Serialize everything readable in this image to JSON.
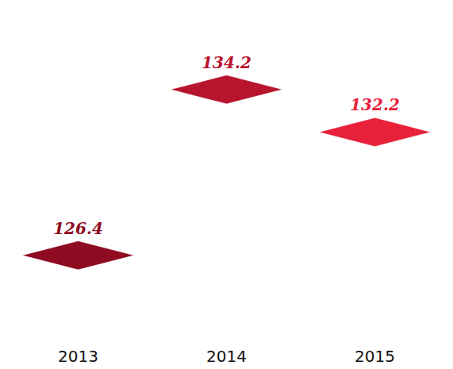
{
  "chart_data": {
    "type": "bar",
    "categories": [
      "2013",
      "2014",
      "2015"
    ],
    "values": [
      126.4,
      134.2,
      132.2
    ],
    "colors": [
      "#8e0b22",
      "#b8142e",
      "#e8203a"
    ],
    "ylim": [
      122,
      136
    ],
    "data_labels": true,
    "tick_labels": "x"
  }
}
